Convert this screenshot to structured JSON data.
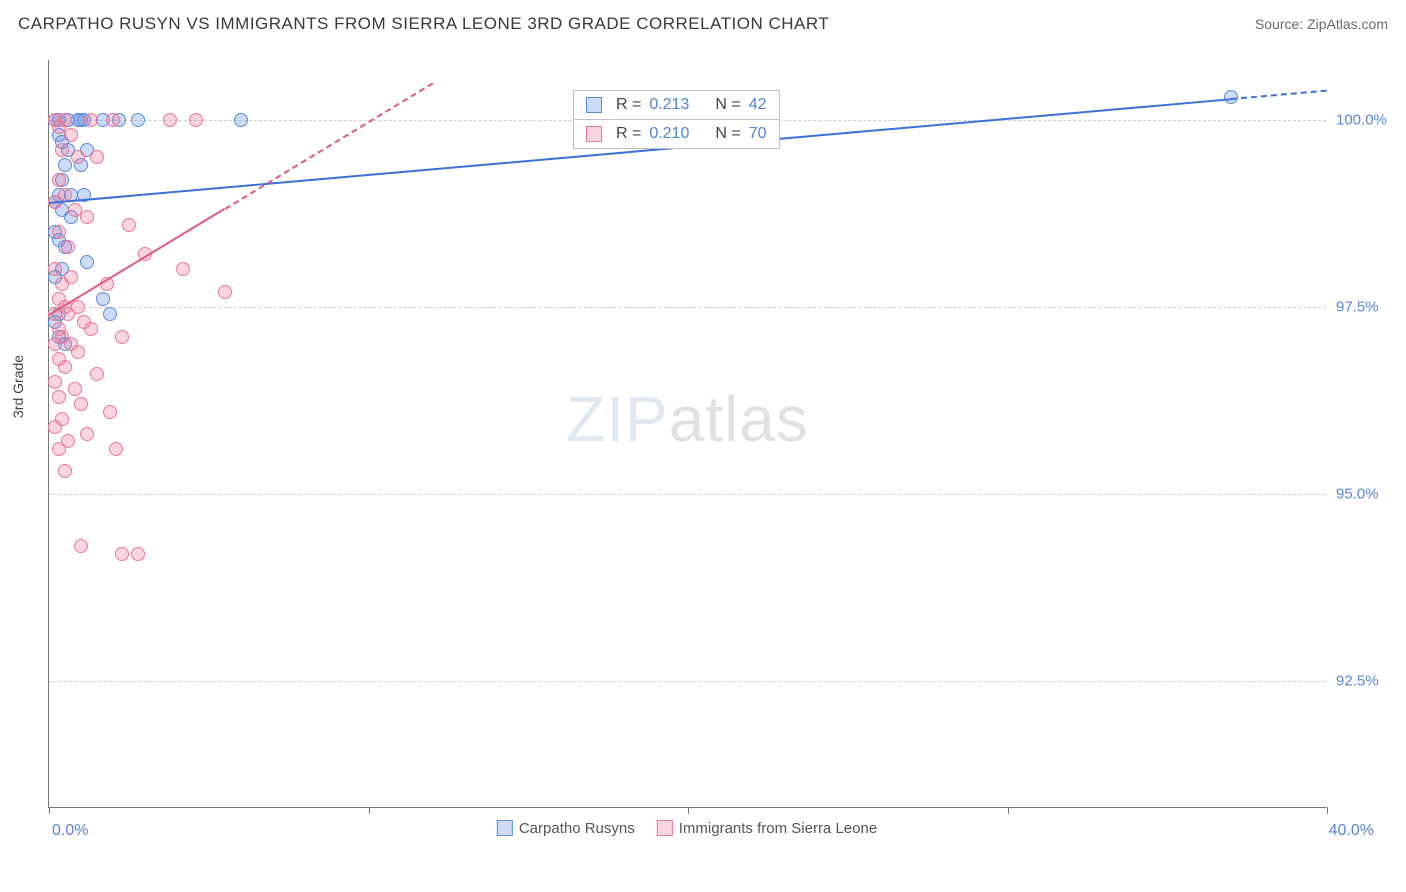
{
  "header": {
    "title": "CARPATHO RUSYN VS IMMIGRANTS FROM SIERRA LEONE 3RD GRADE CORRELATION CHART",
    "source": "Source: ZipAtlas.com"
  },
  "chart": {
    "type": "scatter",
    "ylabel": "3rd Grade",
    "xlim": [
      0,
      40
    ],
    "ylim": [
      90.8,
      100.8
    ],
    "xticks": [
      0,
      10,
      20,
      30,
      40
    ],
    "xtick_labels_shown": {
      "left": "0.0%",
      "right": "40.0%"
    },
    "yticks": [
      92.5,
      95.0,
      97.5,
      100.0
    ],
    "ytick_labels": [
      "92.5%",
      "95.0%",
      "97.5%",
      "100.0%"
    ],
    "grid_color": "#cfcfcf",
    "axis_color": "#777777",
    "tick_color": "#5a85d6",
    "series": [
      {
        "label": "Carpatho Rusyns",
        "color_fill": "rgba(90,140,225,0.30)",
        "color_stroke": "#5a8ce1",
        "marker_radius": 7,
        "r_value": "0.213",
        "n_value": "42",
        "trend": {
          "x1": 0,
          "y1": 98.9,
          "x2": 40,
          "y2": 100.4,
          "solid_until_x": 37,
          "stroke": "#3a72d8",
          "width": 2
        },
        "points": [
          [
            0.2,
            100.0
          ],
          [
            0.3,
            100.0
          ],
          [
            0.6,
            100.0
          ],
          [
            0.9,
            100.0
          ],
          [
            1.0,
            100.0
          ],
          [
            1.1,
            100.0
          ],
          [
            1.7,
            100.0
          ],
          [
            2.2,
            100.0
          ],
          [
            2.8,
            100.0
          ],
          [
            6.0,
            100.0
          ],
          [
            0.3,
            99.8
          ],
          [
            0.4,
            99.7
          ],
          [
            0.6,
            99.6
          ],
          [
            1.2,
            99.6
          ],
          [
            0.5,
            99.4
          ],
          [
            1.0,
            99.4
          ],
          [
            0.4,
            99.2
          ],
          [
            0.3,
            99.0
          ],
          [
            0.7,
            99.0
          ],
          [
            1.1,
            99.0
          ],
          [
            0.2,
            98.9
          ],
          [
            0.4,
            98.8
          ],
          [
            0.7,
            98.7
          ],
          [
            0.2,
            98.5
          ],
          [
            0.3,
            98.4
          ],
          [
            0.5,
            98.3
          ],
          [
            1.2,
            98.1
          ],
          [
            0.4,
            98.0
          ],
          [
            0.2,
            97.9
          ],
          [
            1.7,
            97.6
          ],
          [
            0.3,
            97.4
          ],
          [
            1.9,
            97.4
          ],
          [
            0.2,
            97.3
          ],
          [
            0.3,
            97.1
          ],
          [
            0.5,
            97.0
          ],
          [
            37.0,
            100.3
          ]
        ]
      },
      {
        "label": "Immigrants from Sierra Leone",
        "color_fill": "rgba(235,120,150,0.30)",
        "color_stroke": "#eb7896",
        "marker_radius": 7,
        "r_value": "0.210",
        "n_value": "70",
        "trend": {
          "x1": 0,
          "y1": 97.4,
          "x2": 12,
          "y2": 100.5,
          "solid_until_x": 5.5,
          "stroke": "#e05a82",
          "width": 2
        },
        "points": [
          [
            0.2,
            100.0
          ],
          [
            0.5,
            100.0
          ],
          [
            1.3,
            100.0
          ],
          [
            2.0,
            100.0
          ],
          [
            3.8,
            100.0
          ],
          [
            4.6,
            100.0
          ],
          [
            0.3,
            99.9
          ],
          [
            0.7,
            99.8
          ],
          [
            0.4,
            99.6
          ],
          [
            0.9,
            99.5
          ],
          [
            1.5,
            99.5
          ],
          [
            0.3,
            99.2
          ],
          [
            0.5,
            99.0
          ],
          [
            0.2,
            98.9
          ],
          [
            0.8,
            98.8
          ],
          [
            1.2,
            98.7
          ],
          [
            2.5,
            98.6
          ],
          [
            0.3,
            98.5
          ],
          [
            0.6,
            98.3
          ],
          [
            3.0,
            98.2
          ],
          [
            4.2,
            98.0
          ],
          [
            0.2,
            98.0
          ],
          [
            0.7,
            97.9
          ],
          [
            0.4,
            97.8
          ],
          [
            1.8,
            97.8
          ],
          [
            5.5,
            97.7
          ],
          [
            0.3,
            97.6
          ],
          [
            0.5,
            97.5
          ],
          [
            0.9,
            97.5
          ],
          [
            0.2,
            97.4
          ],
          [
            0.6,
            97.4
          ],
          [
            1.1,
            97.3
          ],
          [
            0.3,
            97.2
          ],
          [
            1.3,
            97.2
          ],
          [
            0.4,
            97.1
          ],
          [
            2.3,
            97.1
          ],
          [
            0.2,
            97.0
          ],
          [
            0.7,
            97.0
          ],
          [
            0.9,
            96.9
          ],
          [
            0.3,
            96.8
          ],
          [
            0.5,
            96.7
          ],
          [
            1.5,
            96.6
          ],
          [
            0.2,
            96.5
          ],
          [
            0.8,
            96.4
          ],
          [
            0.3,
            96.3
          ],
          [
            1.0,
            96.2
          ],
          [
            1.9,
            96.1
          ],
          [
            0.4,
            96.0
          ],
          [
            0.2,
            95.9
          ],
          [
            1.2,
            95.8
          ],
          [
            0.6,
            95.7
          ],
          [
            2.1,
            95.6
          ],
          [
            0.3,
            95.6
          ],
          [
            0.5,
            95.3
          ],
          [
            1.0,
            94.3
          ],
          [
            2.3,
            94.2
          ],
          [
            2.8,
            94.2
          ]
        ]
      }
    ],
    "top_legend": {
      "x_percent": 41,
      "y_value": 100.4,
      "rows": [
        {
          "swatch_fill": "rgba(90,140,225,0.30)",
          "swatch_stroke": "#5a8ce1",
          "text_r": "R =",
          "val_r": "0.213",
          "text_n": "N =",
          "val_n": "42"
        },
        {
          "swatch_fill": "rgba(235,120,150,0.30)",
          "swatch_stroke": "#eb7896",
          "text_r": "R =",
          "val_r": "0.210",
          "text_n": "N =",
          "val_n": "70"
        }
      ]
    },
    "bottom_legend": [
      {
        "swatch_fill": "rgba(90,140,225,0.30)",
        "swatch_stroke": "#5a8ce1",
        "label": "Carpatho Rusyns"
      },
      {
        "swatch_fill": "rgba(235,120,150,0.30)",
        "swatch_stroke": "#eb7896",
        "label": "Immigrants from Sierra Leone"
      }
    ],
    "watermark": {
      "part1": "ZIP",
      "part2": "atlas"
    }
  }
}
